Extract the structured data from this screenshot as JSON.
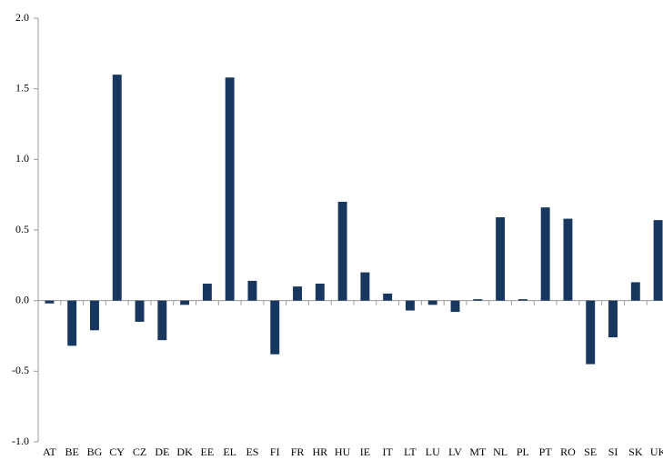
{
  "chart_data": {
    "type": "bar",
    "categories": [
      "AT",
      "BE",
      "BG",
      "CY",
      "CZ",
      "DE",
      "DK",
      "EE",
      "EL",
      "ES",
      "FI",
      "FR",
      "HR",
      "HU",
      "IE",
      "IT",
      "LT",
      "LU",
      "LV",
      "MT",
      "NL",
      "PL",
      "PT",
      "RO",
      "SE",
      "SI",
      "SK",
      "UK"
    ],
    "values": [
      -0.02,
      -0.32,
      -0.21,
      1.6,
      -0.15,
      -0.28,
      -0.03,
      0.12,
      1.58,
      0.14,
      -0.38,
      0.1,
      0.12,
      0.7,
      0.2,
      0.05,
      -0.07,
      -0.03,
      -0.08,
      0.01,
      0.59,
      0.01,
      0.66,
      0.58,
      -0.45,
      -0.26,
      0.13,
      0.57
    ],
    "color": "#17375e",
    "ylim": [
      -1.0,
      2.0
    ],
    "yticks": [
      {
        "value": -1.0,
        "label": "-1.0"
      },
      {
        "value": -0.5,
        "label": "-0.5"
      },
      {
        "value": 0,
        "label": "0.0"
      },
      {
        "value": 0.5,
        "label": "0.5"
      },
      {
        "value": 1.0,
        "label": "1.0"
      },
      {
        "value": 1.5,
        "label": "1.5"
      },
      {
        "value": 2.0,
        "label": "2.0"
      }
    ],
    "grid": false
  }
}
